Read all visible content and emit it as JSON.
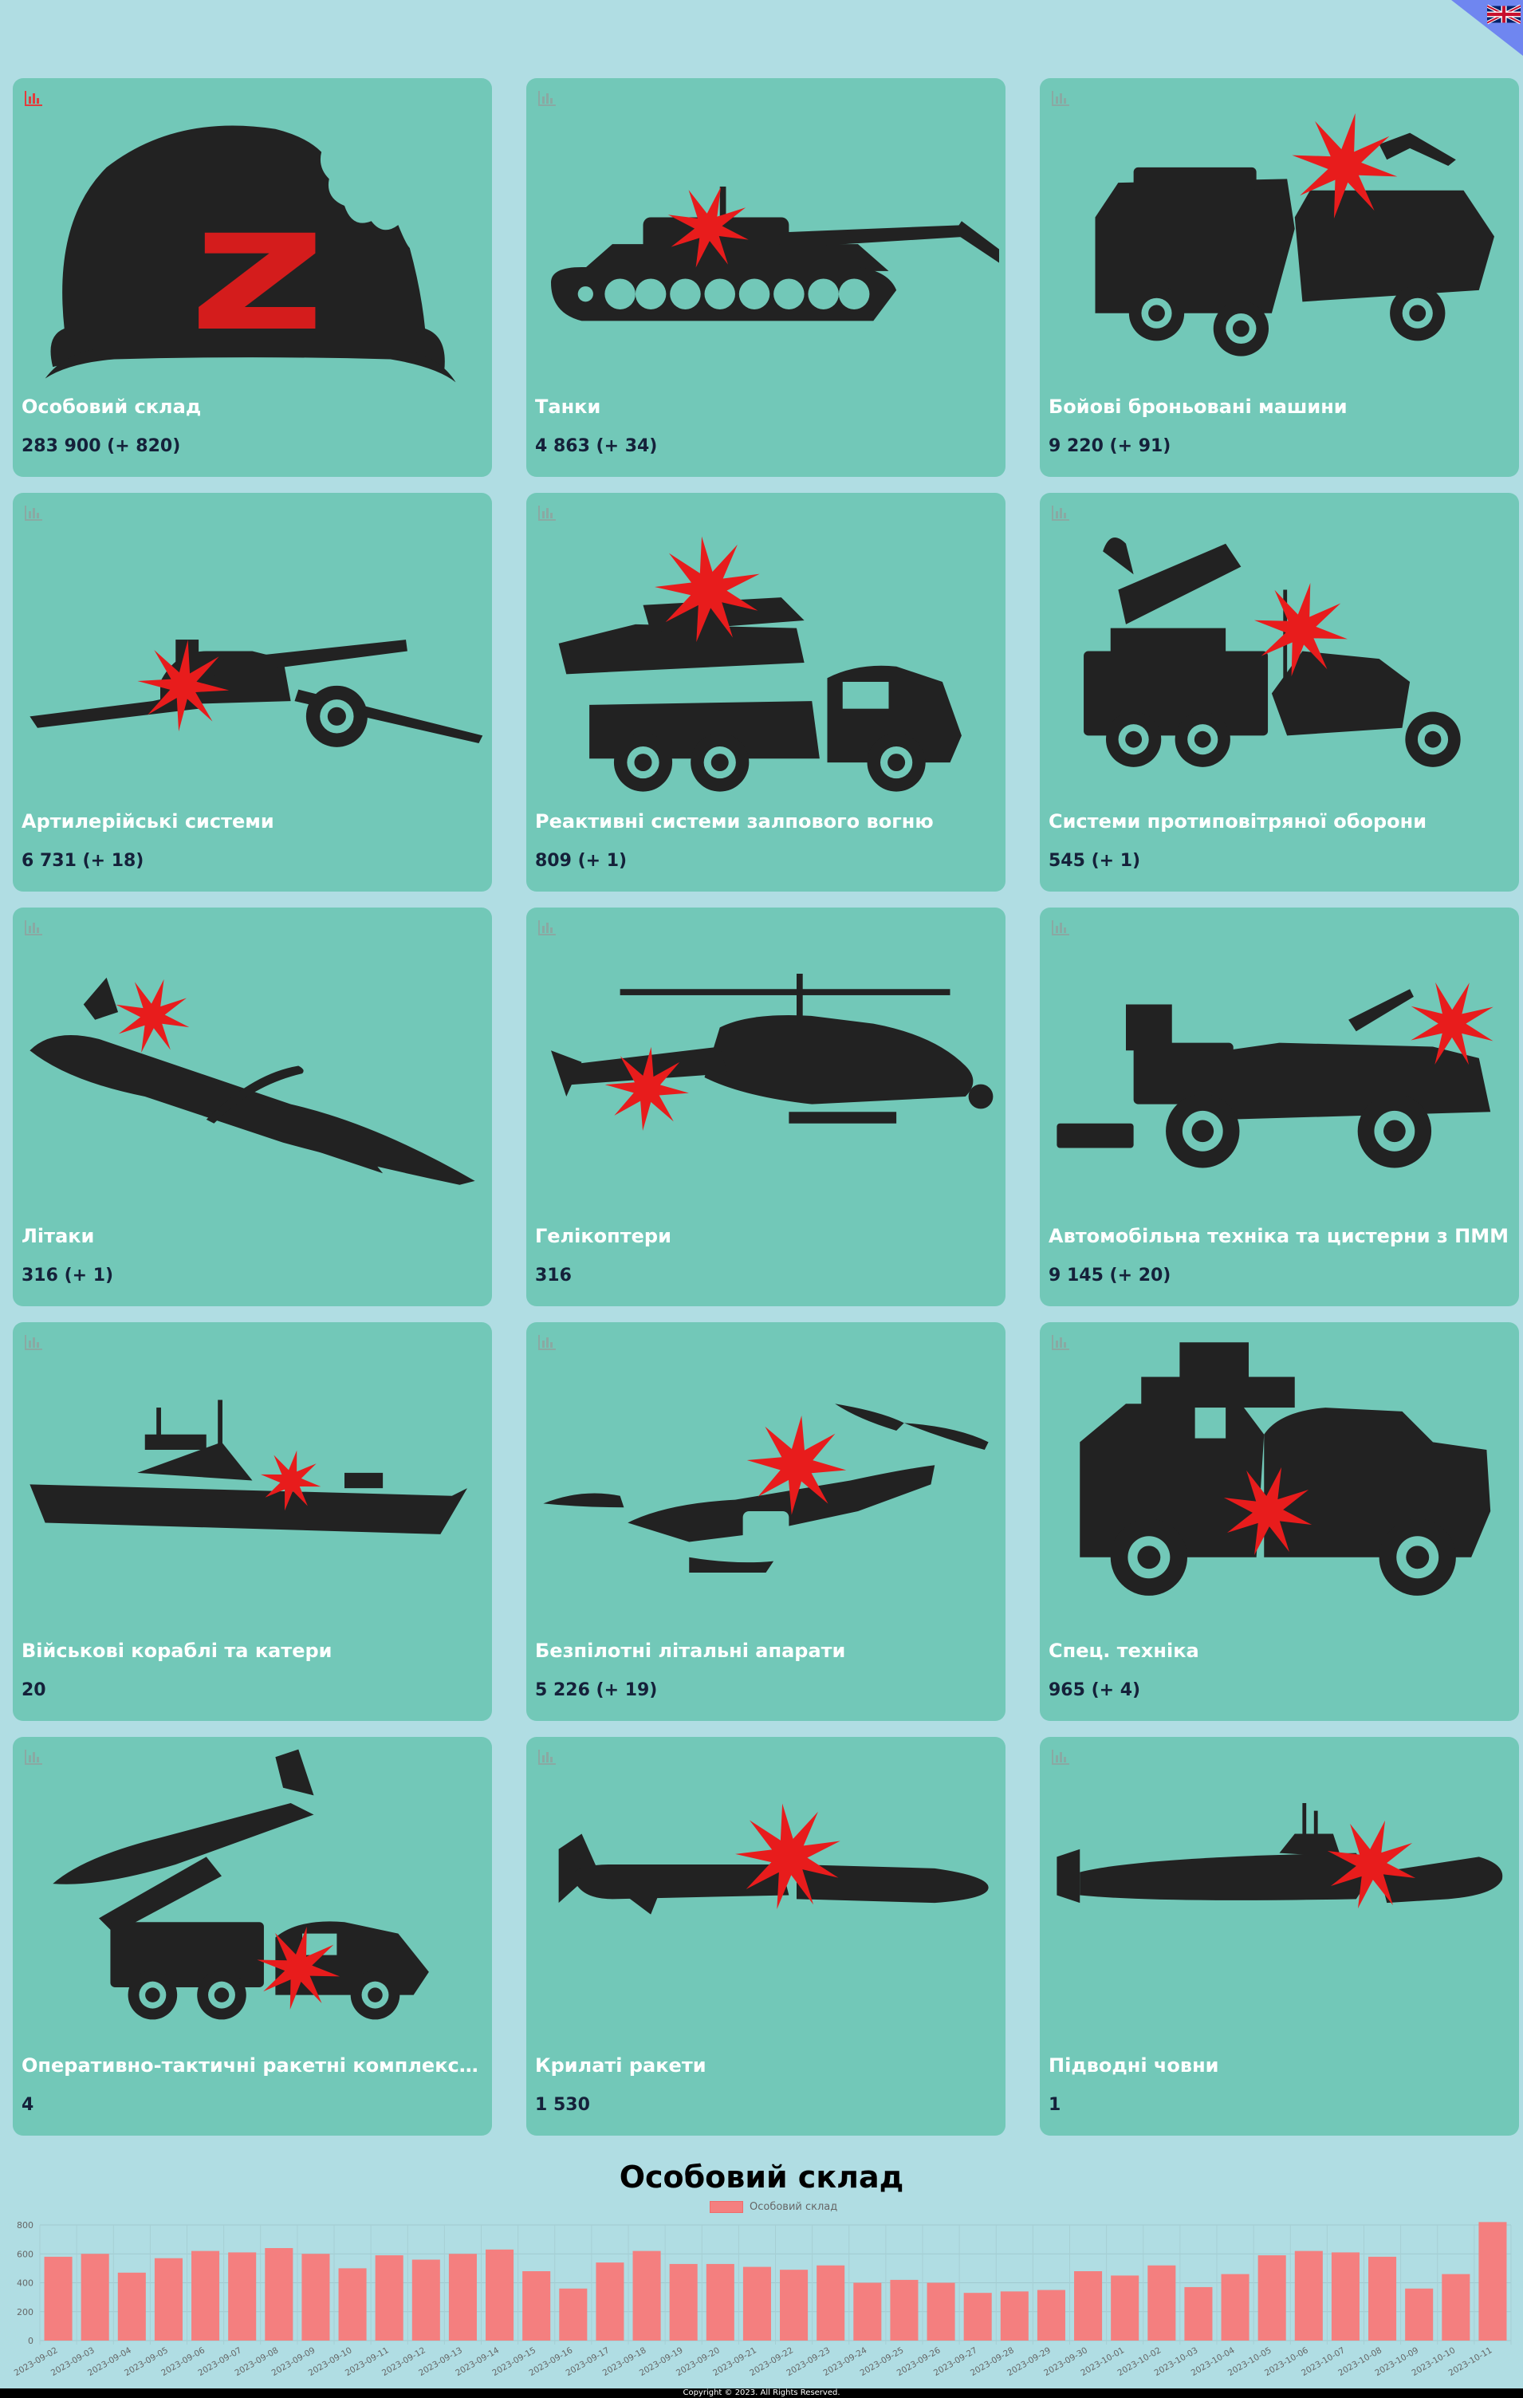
{
  "language_flag": {
    "icon": "uk-flag-icon"
  },
  "cards": [
    {
      "title": "Особовий склад",
      "value": "283 900 (+ 820)",
      "icon": "soldier-helmet-icon",
      "active_chart": true
    },
    {
      "title": "Танки",
      "value": "4 863 (+ 34)",
      "icon": "tank-icon"
    },
    {
      "title": "Бойові броньовані машини",
      "value": "9 220 (+ 91)",
      "icon": "armored-vehicle-icon"
    },
    {
      "title": "Артилерійські системи",
      "value": "6 731 (+ 18)",
      "icon": "artillery-icon"
    },
    {
      "title": "Реактивні системи залпового вогню",
      "value": "809 (+ 1)",
      "icon": "mlrs-icon"
    },
    {
      "title": "Системи протиповітряної оборони",
      "value": "545 (+ 1)",
      "icon": "air-defense-icon"
    },
    {
      "title": "Літаки",
      "value": "316 (+ 1)",
      "icon": "aircraft-icon"
    },
    {
      "title": "Гелікоптери",
      "value": "316",
      "icon": "helicopter-icon"
    },
    {
      "title": "Автомобільна техніка та цистерни з ПММ",
      "value": "9 145 (+ 20)",
      "icon": "truck-icon"
    },
    {
      "title": "Військові кораблі та катери",
      "value": "20",
      "icon": "warship-icon"
    },
    {
      "title": "Безпілотні літальні апарати",
      "value": "5 226 (+ 19)",
      "icon": "drone-icon"
    },
    {
      "title": "Спец. техніка",
      "value": "965 (+ 4)",
      "icon": "special-vehicle-icon"
    },
    {
      "title": "Оперативно-тактичні ракетні комплекси т...",
      "value": "4",
      "icon": "missile-launcher-icon"
    },
    {
      "title": "Крилаті ракети",
      "value": "1 530",
      "icon": "cruise-missile-icon"
    },
    {
      "title": "Підводні човни",
      "value": "1",
      "icon": "submarine-icon"
    }
  ],
  "chart_data": {
    "type": "bar",
    "title": "Особовий склад",
    "legend": "top",
    "grid": true,
    "ylim": [
      0,
      800
    ],
    "yticks": [
      0,
      200,
      400,
      600,
      800
    ],
    "categories": [
      "2023-09-02",
      "2023-09-03",
      "2023-09-04",
      "2023-09-05",
      "2023-09-06",
      "2023-09-07",
      "2023-09-08",
      "2023-09-09",
      "2023-09-10",
      "2023-09-11",
      "2023-09-12",
      "2023-09-13",
      "2023-09-14",
      "2023-09-15",
      "2023-09-16",
      "2023-09-17",
      "2023-09-18",
      "2023-09-19",
      "2023-09-20",
      "2023-09-21",
      "2023-09-22",
      "2023-09-23",
      "2023-09-24",
      "2023-09-25",
      "2023-09-26",
      "2023-09-27",
      "2023-09-28",
      "2023-09-29",
      "2023-09-30",
      "2023-10-01",
      "2023-10-02",
      "2023-10-03",
      "2023-10-04",
      "2023-10-05",
      "2023-10-06",
      "2023-10-07",
      "2023-10-08",
      "2023-10-09",
      "2023-10-10",
      "2023-10-11"
    ],
    "series": [
      {
        "name": "Особовий склад",
        "color": "#f47f7f",
        "values": [
          580,
          600,
          470,
          570,
          620,
          610,
          640,
          600,
          500,
          590,
          560,
          600,
          630,
          480,
          360,
          540,
          620,
          530,
          530,
          510,
          490,
          520,
          400,
          420,
          400,
          330,
          340,
          350,
          480,
          450,
          520,
          370,
          460,
          590,
          620,
          610,
          580,
          360,
          460,
          820
        ]
      }
    ]
  },
  "footer": {
    "text": "Copyright © 2023. All Rights Reserved."
  }
}
